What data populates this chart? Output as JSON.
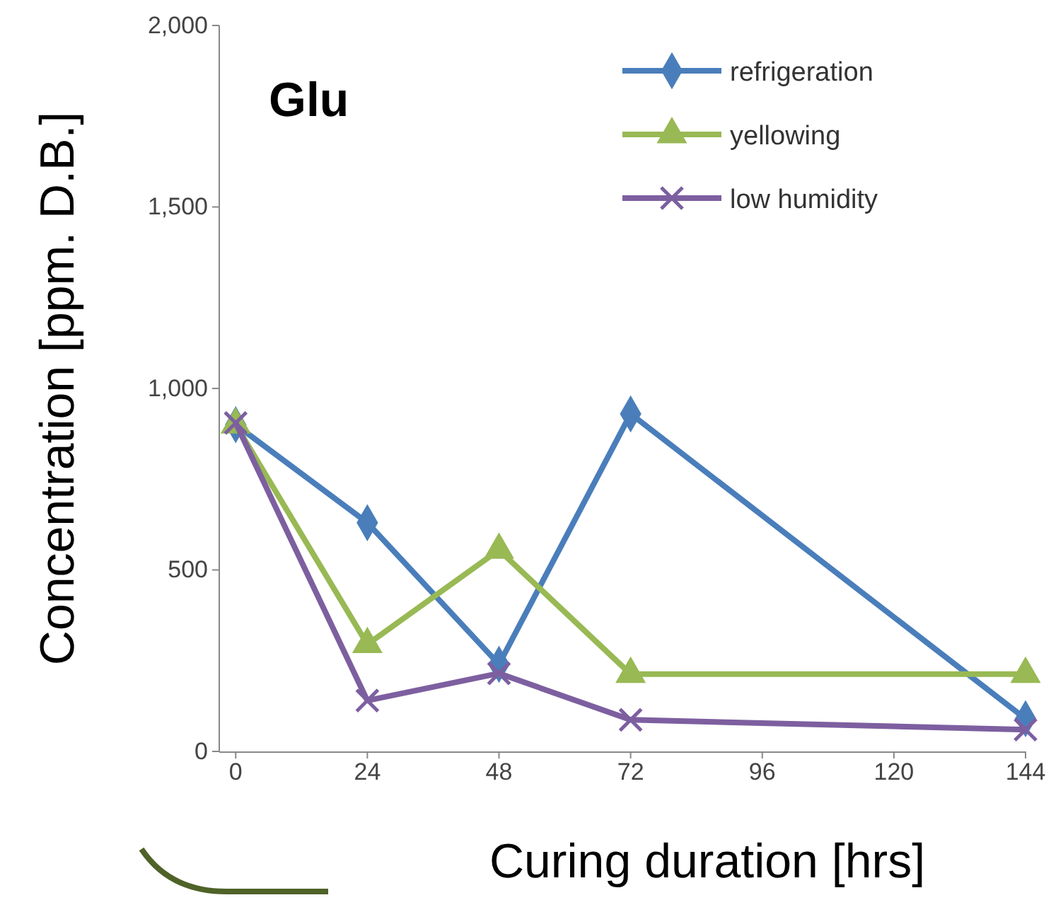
{
  "chart_data": {
    "type": "line",
    "title": "Glu",
    "xlabel": "Curing duration [hrs]",
    "ylabel": "Concentration [ppm. D.B.]",
    "xlim": [
      -3,
      144
    ],
    "xticks": [
      0,
      24,
      48,
      72,
      96,
      120,
      144
    ],
    "ylim": [
      0,
      2000
    ],
    "yticks": [
      0,
      {
        "value": 500,
        "label": "500"
      },
      {
        "value": 1000,
        "label": "1,000"
      },
      {
        "value": 1500,
        "label": "1,500"
      },
      {
        "value": 2000,
        "label": "2,000"
      }
    ],
    "x": [
      0,
      24,
      48,
      72,
      144
    ],
    "grid": false,
    "legend": "top right",
    "series": [
      {
        "name": "refrigeration",
        "color": "#4a7ebb",
        "marker": "diamond",
        "values": [
          900,
          630,
          240,
          930,
          90
        ]
      },
      {
        "name": "yellowing",
        "color": "#98b954",
        "marker": "triangle",
        "values": [
          900,
          295,
          555,
          213,
          213
        ]
      },
      {
        "name": "low humidity",
        "color": "#7d5fa0",
        "marker": "cross",
        "values": [
          905,
          140,
          215,
          87,
          60
        ]
      }
    ]
  }
}
